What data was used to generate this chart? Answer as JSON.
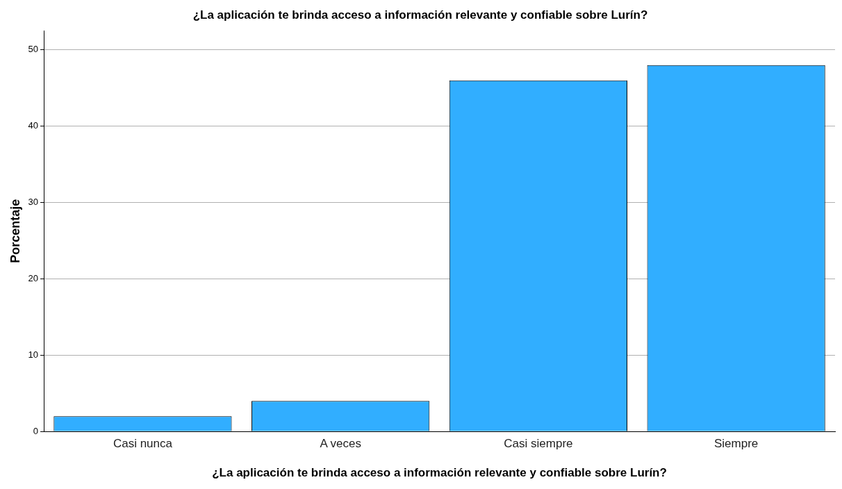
{
  "chart_data": {
    "type": "bar",
    "title": "¿La aplicación te brinda acceso a información relevante y confiable sobre Lurín?",
    "xlabel": "¿La aplicación te brinda acceso a información relevante y confiable sobre Lurín?",
    "ylabel": "Porcentaje",
    "categories": [
      "Casi nunca",
      "A veces",
      "Casi siempre",
      "Siempre"
    ],
    "values": [
      2,
      4,
      46,
      48
    ],
    "color": "#31aeff",
    "ylim": [
      0,
      52.5
    ],
    "yticks": [
      0,
      10,
      20,
      30,
      40,
      50
    ],
    "grid": "y"
  }
}
